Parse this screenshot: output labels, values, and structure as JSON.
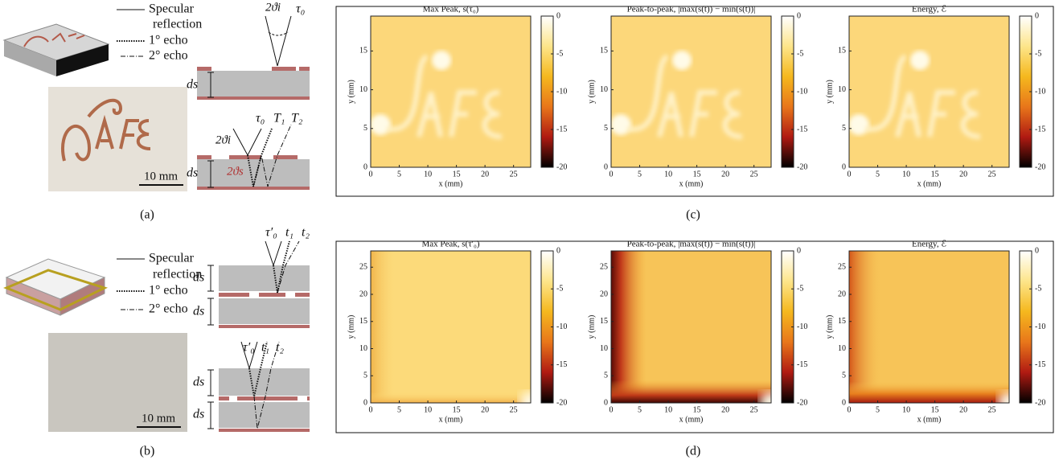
{
  "panel_labels": {
    "a": "(a)",
    "b": "(b)",
    "c": "(c)",
    "d": "(d)"
  },
  "legend_top": {
    "specular": "Specular",
    "reflection": "reflection",
    "echo1": "1° echo",
    "echo2": "2° echo"
  },
  "legend_bottom": {
    "specular": "Specular",
    "reflection": "reflection",
    "echo1": "1° echo",
    "echo2": "2° echo"
  },
  "photo_top": {
    "scale": "10 mm"
  },
  "photo_bottom": {
    "scale": "10 mm"
  },
  "diagram_top": {
    "upper": {
      "angle": "2ϑi",
      "tau": "τ₀",
      "thickness": "ds"
    },
    "lower": {
      "taus": [
        "τ₀",
        "T₁",
        "T₂"
      ],
      "angle": "2ϑi",
      "angle_s": "2ϑs",
      "thickness": "ds"
    }
  },
  "diagram_bottom": {
    "upper": {
      "taus": [
        "τ′₀",
        "t₁",
        "t₂"
      ],
      "thickness": [
        "ds",
        "ds"
      ]
    },
    "lower": {
      "taus": [
        "τ′₀",
        "t₁",
        "t₂"
      ],
      "thickness": [
        "ds",
        "ds"
      ]
    }
  },
  "chart_data": [
    {
      "type": "heatmap",
      "title": "Max Peak, s(τ₀)",
      "xlabel": "x (mm)",
      "ylabel": "y (mm)",
      "xlim": [
        0,
        28
      ],
      "ylim": [
        0,
        19.5
      ],
      "xticks": [
        0,
        5,
        10,
        15,
        20,
        25
      ],
      "yticks": [
        0,
        5,
        10,
        15
      ],
      "clim": [
        -20,
        0
      ],
      "cticks": [
        0,
        -5,
        -10,
        -15,
        -20
      ]
    },
    {
      "type": "heatmap",
      "title": "Peak-to-peak, |max(s(t)) − min(s(t))|",
      "xlabel": "x (mm)",
      "ylabel": "y (mm)",
      "xlim": [
        0,
        28
      ],
      "ylim": [
        0,
        19.5
      ],
      "xticks": [
        0,
        5,
        10,
        15,
        20,
        25
      ],
      "yticks": [
        0,
        5,
        10,
        15
      ],
      "clim": [
        -20,
        0
      ],
      "cticks": [
        0,
        -5,
        -10,
        -15,
        -20
      ]
    },
    {
      "type": "heatmap",
      "title": "Energy, ℰ",
      "xlabel": "x (mm)",
      "ylabel": "y (mm)",
      "xlim": [
        0,
        28
      ],
      "ylim": [
        0,
        19.5
      ],
      "xticks": [
        0,
        5,
        10,
        15,
        20,
        25
      ],
      "yticks": [
        0,
        5,
        10,
        15
      ],
      "clim": [
        -20,
        0
      ],
      "cticks": [
        0,
        -5,
        -10,
        -15,
        -20
      ]
    },
    {
      "type": "heatmap",
      "title": "Max Peak, s(τ′₀)",
      "xlabel": "x (mm)",
      "ylabel": "y (mm)",
      "xlim": [
        0,
        28
      ],
      "ylim": [
        0,
        28
      ],
      "xticks": [
        0,
        5,
        10,
        15,
        20,
        25
      ],
      "yticks": [
        0,
        5,
        10,
        15,
        20,
        25
      ],
      "clim": [
        -20,
        0
      ],
      "cticks": [
        0,
        -5,
        -10,
        -15,
        -20
      ]
    },
    {
      "type": "heatmap",
      "title": "Peak-to-peak, |max(s(t)) − min(s(t))|",
      "xlabel": "x (mm)",
      "ylabel": "y (mm)",
      "xlim": [
        0,
        28
      ],
      "ylim": [
        0,
        28
      ],
      "xticks": [
        0,
        5,
        10,
        15,
        20,
        25
      ],
      "yticks": [
        0,
        5,
        10,
        15,
        20,
        25
      ],
      "clim": [
        -20,
        0
      ],
      "cticks": [
        0,
        -5,
        -10,
        -15,
        -20
      ]
    },
    {
      "type": "heatmap",
      "title": "Energy, ℰ",
      "xlabel": "x (mm)",
      "ylabel": "y (mm)",
      "xlim": [
        0,
        28
      ],
      "ylim": [
        0,
        28
      ],
      "xticks": [
        0,
        5,
        10,
        15,
        20,
        25
      ],
      "yticks": [
        0,
        5,
        10,
        15,
        20,
        25
      ],
      "clim": [
        -20,
        0
      ],
      "cticks": [
        0,
        -5,
        -10,
        -15,
        -20
      ]
    }
  ]
}
